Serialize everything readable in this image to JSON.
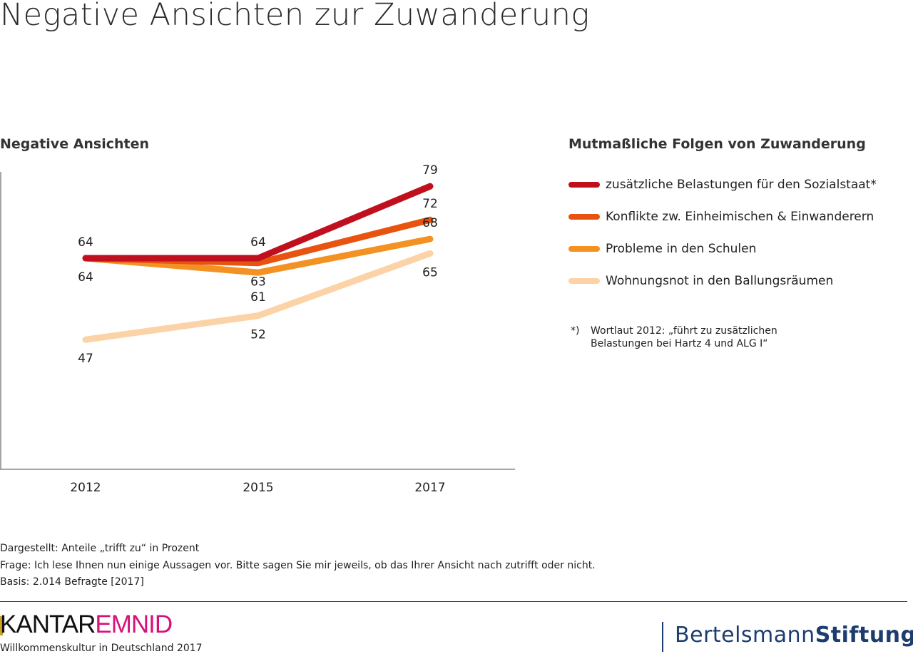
{
  "title": "Negative Ansichten zur Zuwanderung",
  "chart_data": {
    "type": "line",
    "title": "Negative Ansichten",
    "categories": [
      "2012",
      "2015",
      "2017"
    ],
    "ylim": [
      20,
      82
    ],
    "grid": false,
    "legend_title": "Mutmaßliche Folgen von Zuwanderung",
    "legend_placement": "right",
    "series": [
      {
        "name": "zusätzliche Belastungen für den Sozialstaat*",
        "color": "#c0101e",
        "values": [
          64,
          64,
          79
        ],
        "labels": [
          "64",
          "64",
          "79"
        ],
        "label_pos": [
          "above",
          "above",
          "above"
        ]
      },
      {
        "name": "Konflikte zw. Einheimischen & Einwanderern",
        "color": "#e8530f",
        "values": [
          64,
          63,
          72
        ],
        "labels": [
          "",
          "63",
          "72"
        ],
        "label_pos": [
          "",
          "below",
          "above"
        ]
      },
      {
        "name": "Probleme in den Schulen",
        "color": "#f39222",
        "values": [
          64,
          61,
          68
        ],
        "labels": [
          "64",
          "61",
          "68"
        ],
        "label_pos": [
          "below",
          "below2",
          "above"
        ]
      },
      {
        "name": "Wohnungsnot in den Ballungsräumen",
        "color": "#fbd3a6",
        "values": [
          47,
          52,
          65
        ],
        "labels": [
          "47",
          "52",
          "65"
        ],
        "label_pos": [
          "below",
          "below",
          "below"
        ]
      }
    ]
  },
  "footnote": {
    "mark": "*)",
    "line1": "Wortlaut 2012: „führt zu zusätzlichen",
    "line2": "Belastungen bei Hartz 4 und ALG I“"
  },
  "source": {
    "dargestellt": "Dargestellt: Anteile „trifft zu“ in Prozent",
    "frage": "Frage: Ich lese Ihnen nun einige Aussagen vor. Bitte sagen Sie mir jeweils, ob das Ihrer Ansicht nach zutrifft oder nicht.",
    "basis": "Basis: 2.014 Befragte [2017]"
  },
  "footer": {
    "kantar_part1": "KANTAR",
    "kantar_part2": "EMNID",
    "kantar_sub": "Willkommenskultur in Deutschland 2017",
    "bs_part1": "Bertelsmann",
    "bs_part2": "Stiftung"
  }
}
